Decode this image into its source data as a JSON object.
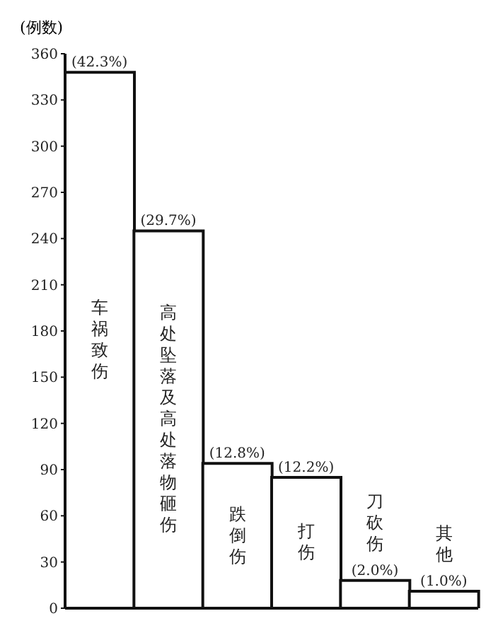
{
  "chart_data": {
    "type": "bar",
    "ylabel": "(例数)",
    "categories": [
      "车祸致伤",
      "高处坠落及高处落物砸伤",
      "跌倒伤",
      "打伤",
      "刀砍伤",
      "其他"
    ],
    "values": [
      348,
      245,
      94,
      85,
      18,
      11
    ],
    "annotations": [
      {
        "text": "(42.3%)",
        "x": "车祸致伤",
        "y": 348
      },
      {
        "text": "(29.7%)",
        "x": "高处坠落及高处落物砸伤",
        "y": 245
      },
      {
        "text": "(12.8%)",
        "x": "跌倒伤",
        "y": 94
      },
      {
        "text": "(12.2%)",
        "x": "打伤",
        "y": 85
      },
      {
        "text": "(2.0%)",
        "x": "刀砍伤",
        "y": 18
      },
      {
        "text": "(1.0%)",
        "x": "其他",
        "y": 11
      }
    ],
    "color": "#ffffff",
    "ylim": [
      0,
      360
    ],
    "yticks": [
      0,
      30,
      60,
      90,
      120,
      150,
      180,
      210,
      240,
      270,
      300,
      330,
      360
    ],
    "tick_labels": "y",
    "grid": false,
    "legend": false
  }
}
